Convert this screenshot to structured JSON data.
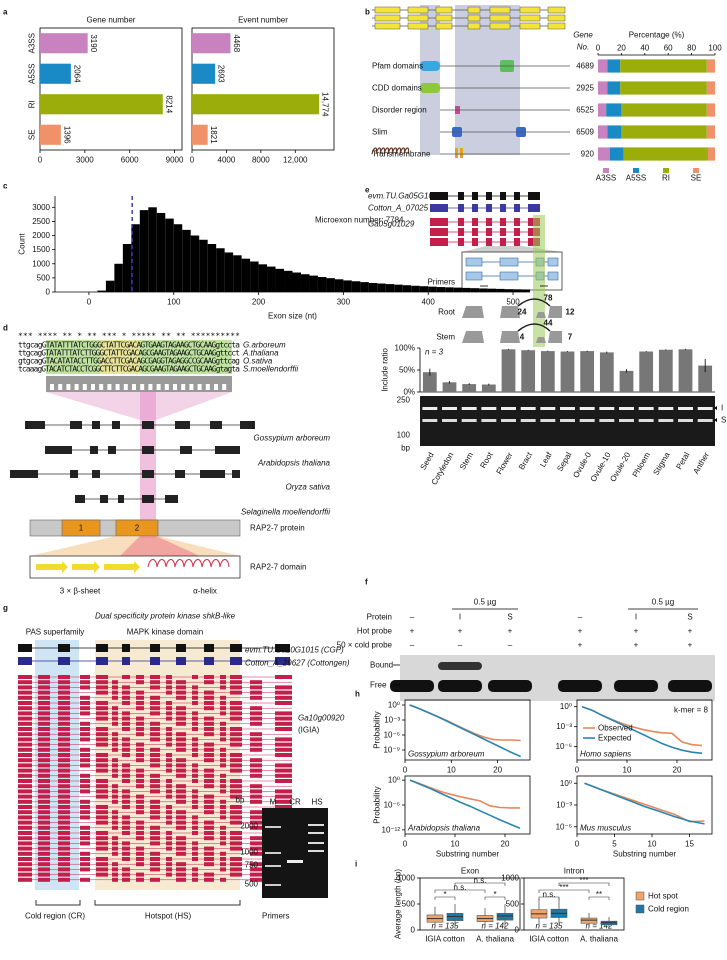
{
  "chart_data": [
    {
      "type": "barh",
      "title": "Gene number",
      "categories": [
        "A3SS",
        "A5SS",
        "RI",
        "SE"
      ],
      "values": [
        3190,
        2064,
        8214,
        1396
      ],
      "colors": [
        "#c882c0",
        "#1a8ac6",
        "#9aad0a",
        "#f0916a"
      ],
      "xlim": [
        0,
        9500
      ],
      "xticks": [
        0,
        3000,
        6000,
        9000
      ]
    },
    {
      "type": "barh",
      "title": "Event number",
      "values": [
        4468,
        2693,
        14774,
        1821
      ],
      "value_labels": [
        "4468",
        "2693",
        "14,774",
        "1821"
      ],
      "colors": [
        "#c882c0",
        "#1a8ac6",
        "#9aad0a",
        "#f0916a"
      ],
      "xlim": [
        0,
        16500
      ],
      "xticks": [
        0,
        4000,
        8000,
        {
          "value": 12000,
          "label": "12,000"
        }
      ]
    },
    {
      "type": "barh_stacked",
      "title": "Percentage (%)",
      "column_header": [
        "Gene",
        "No."
      ],
      "categories": [
        "Pfam domains",
        "CDD domains",
        "Disorder region",
        "Slim",
        "Transmembrane"
      ],
      "gene_numbers": [
        4689,
        2925,
        6525,
        6509,
        920
      ],
      "series": [
        {
          "name": "A3SS",
          "color": "#c882c0",
          "values": [
            8,
            8,
            7,
            8,
            10
          ]
        },
        {
          "name": "A5SS",
          "color": "#1a8ac6",
          "values": [
            11,
            11,
            13,
            12,
            12
          ]
        },
        {
          "name": "RI",
          "color": "#9aad0a",
          "values": [
            74,
            74,
            73,
            73,
            72
          ]
        },
        {
          "name": "SE",
          "color": "#f0916a",
          "values": [
            7,
            7,
            7,
            7,
            6
          ]
        }
      ],
      "xlim": [
        0,
        100
      ],
      "xticks": [
        0,
        20,
        40,
        60,
        80,
        100
      ]
    },
    {
      "type": "histogram",
      "xlabel": "Exon size (nt)",
      "ylabel": "Count",
      "annotation": "Microexon number: 7784",
      "threshold": 51,
      "color": "#000000",
      "bins": [
        0,
        10,
        20,
        30,
        40,
        50,
        60,
        70,
        80,
        90,
        100,
        110,
        120,
        130,
        140,
        150,
        160,
        170,
        180,
        190,
        200,
        210,
        220,
        230,
        240,
        250,
        260,
        270,
        280,
        290,
        300,
        310,
        320,
        330,
        340,
        350,
        360,
        370,
        380,
        390,
        400,
        410,
        420,
        430,
        440,
        450,
        460,
        470,
        480,
        490,
        500,
        510,
        520
      ],
      "values": [
        0,
        50,
        400,
        1000,
        1700,
        2400,
        2900,
        3000,
        2800,
        2600,
        2400,
        2200,
        2000,
        1850,
        1700,
        1550,
        1400,
        1300,
        1180,
        1080,
        980,
        900,
        820,
        750,
        690,
        630,
        580,
        530,
        490,
        450,
        410,
        380,
        350,
        320,
        300,
        280,
        260,
        240,
        220,
        205,
        190,
        175,
        165,
        155,
        145,
        135,
        125,
        118,
        110,
        100,
        95,
        90
      ],
      "xlim": [
        -40,
        520
      ],
      "xticks": [
        0,
        100,
        200,
        300,
        400,
        500
      ],
      "ylim": [
        0,
        3400
      ],
      "yticks": [
        0,
        500,
        1000,
        1500,
        2000,
        2500,
        3000
      ]
    },
    {
      "type": "bar",
      "ylabel": "Include ratio",
      "annotation": "n = 3",
      "color": "#777777",
      "categories": [
        "Seed",
        "Cotyledon",
        "Stem",
        "Root",
        "Flower",
        "Bract",
        "Leaf",
        "Sepal",
        "Ovule-0",
        "Ovule-10",
        "Ovule-20",
        "Phloem",
        "Stigma",
        "Petal",
        "Anther"
      ],
      "values": [
        45,
        22,
        18,
        17,
        97,
        95,
        93,
        92,
        93,
        90,
        48,
        92,
        96,
        97,
        60
      ],
      "errors": [
        8,
        3,
        2,
        2,
        1,
        1,
        1,
        1,
        1,
        2,
        4,
        1,
        1,
        1,
        15
      ],
      "ylim": [
        0,
        100
      ],
      "yticks": [
        {
          "value": 0,
          "label": "0%"
        },
        {
          "value": 50,
          "label": "50%"
        },
        {
          "value": 100,
          "label": "100%"
        }
      ]
    },
    {
      "type": "line",
      "title": "Gossypium arboreum",
      "ylabel": "Probability",
      "log_y": true,
      "x": [
        1,
        3,
        5,
        7,
        9,
        11,
        13,
        15,
        17,
        19,
        21,
        23,
        25
      ],
      "series": [
        {
          "name": "Observed",
          "color": "#e8875a",
          "values": [
            1,
            0.2,
            0.032,
            0.005,
            0.00079,
            0.0001,
            1.3e-05,
            2e-06,
            4e-07,
            1.3e-07,
            1e-07,
            1e-07,
            8e-08
          ]
        },
        {
          "name": "Expected",
          "color": "#2a86b0",
          "values": [
            1,
            0.2,
            0.032,
            0.005,
            0.00063,
            7.9e-05,
            1e-05,
            1.3e-06,
            1.6e-07,
            2e-08,
            2.5e-09,
            3.2e-10,
            5e-11
          ]
        }
      ],
      "xlim": [
        0,
        27
      ],
      "xticks": [
        0,
        10,
        20
      ],
      "ylim": [
        1e-11,
        10
      ],
      "yticks": [
        {
          "value": 1,
          "label": "10⁰"
        },
        {
          "value": 0.001,
          "label": "10⁻³"
        },
        {
          "value": 1e-06,
          "label": "10⁻⁶"
        },
        {
          "value": 1e-09,
          "label": "10⁻⁹"
        }
      ]
    },
    {
      "type": "line",
      "title": "Homo sapiens",
      "annotation": "k-mer = 8",
      "legend": "left",
      "log_y": true,
      "x": [
        1,
        3,
        5,
        7,
        9,
        11,
        13,
        15,
        17,
        19,
        21,
        23,
        25
      ],
      "series": [
        {
          "name": "Observed",
          "color": "#e8875a",
          "values": [
            1,
            0.3,
            0.05,
            0.012,
            0.003,
            0.001,
            0.0004,
            0.0002,
            0.00012,
            0.0001,
            5e-06,
            2e-06,
            1.5e-06
          ]
        },
        {
          "name": "Expected",
          "color": "#2a86b0",
          "values": [
            1,
            0.3,
            0.05,
            0.01,
            0.002,
            0.0004,
            8e-05,
            1.5e-05,
            3e-06,
            8e-07,
            3e-07,
            1.5e-07,
            1e-07
          ]
        }
      ],
      "xlim": [
        0,
        27
      ],
      "xticks": [
        0,
        10,
        20
      ],
      "ylim": [
        1e-08,
        10
      ],
      "yticks": [
        {
          "value": 1,
          "label": "10⁰"
        },
        {
          "value": 0.001,
          "label": "10⁻³"
        },
        {
          "value": 1e-06,
          "label": "10⁻⁶"
        }
      ]
    },
    {
      "type": "line",
      "title": "Arabidopsis thaliana",
      "ylabel": "Probability",
      "xlabel": "Substring number",
      "log_y": true,
      "x": [
        1,
        3,
        5,
        7,
        9,
        11,
        13,
        15,
        17,
        19,
        21,
        23
      ],
      "series": [
        {
          "name": "Observed",
          "color": "#e8875a",
          "values": [
            1,
            0.13,
            0.016,
            0.002,
            0.0004,
            0.0001,
            3.2e-05,
            1e-05,
            6.3e-07,
            2.5e-07,
            2e-07,
            2e-07
          ]
        },
        {
          "name": "Expected",
          "color": "#2a86b0",
          "values": [
            1,
            0.1,
            0.01,
            0.0008,
            6.3e-05,
            5e-06,
            5e-07,
            4e-08,
            3.2e-09,
            2.5e-10,
            2.5e-11,
            2.5e-12
          ]
        }
      ],
      "xlim": [
        0,
        25
      ],
      "xticks": [
        0,
        10,
        20
      ],
      "ylim": [
        1e-13,
        10
      ],
      "yticks": [
        {
          "value": 1,
          "label": "10⁰"
        },
        {
          "value": 1e-06,
          "label": "10⁻⁶"
        },
        {
          "value": 1e-12,
          "label": "10⁻¹²"
        }
      ]
    },
    {
      "type": "line",
      "title": "Mus musculus",
      "xlabel": "Substring number",
      "log_y": true,
      "x": [
        1,
        3,
        5,
        7,
        9,
        11,
        13,
        15,
        17
      ],
      "series": [
        {
          "name": "Observed",
          "color": "#e8875a",
          "values": [
            1,
            0.16,
            0.032,
            0.0063,
            0.0013,
            0.00025,
            5e-05,
            5e-06,
            6.3e-06
          ]
        },
        {
          "name": "Expected",
          "color": "#2a86b0",
          "values": [
            1,
            0.16,
            0.025,
            0.004,
            0.00063,
            0.00013,
            2.5e-05,
            6.3e-06,
            2.5e-06
          ]
        }
      ],
      "xlim": [
        0,
        18
      ],
      "xticks": [
        0,
        5,
        10,
        15
      ],
      "ylim": [
        1e-07,
        10
      ],
      "yticks": [
        {
          "value": 1,
          "label": "10⁰"
        },
        {
          "value": 0.001,
          "label": "10⁻³"
        },
        {
          "value": 1e-06,
          "label": "10⁻⁶"
        }
      ]
    },
    {
      "type": "box",
      "title": "Exon",
      "ylabel": "Average length (bp)",
      "categories": [
        "IGIA cotton",
        "A. thaliana"
      ],
      "n_labels": [
        "n = 135",
        "n = 142"
      ],
      "significance": [
        "*",
        "*",
        "n.s.",
        "n.s."
      ],
      "series": [
        {
          "name": "Hot spot",
          "color": "#f0a36a",
          "values": [
            [
              50,
              150,
              220,
              290,
              450
            ],
            [
              50,
              160,
              220,
              280,
              420
            ]
          ]
        },
        {
          "name": "Cold region",
          "color": "#1f78a8",
          "values": [
            [
              60,
              180,
              260,
              320,
              500
            ],
            [
              60,
              190,
              270,
              320,
              500
            ]
          ]
        }
      ],
      "ylim": [
        0,
        1000
      ],
      "yticks": [
        0,
        500,
        1000
      ]
    },
    {
      "type": "box",
      "title": "Intron",
      "legend": "right",
      "categories": [
        "IGIA cotton",
        "A. thaliana"
      ],
      "n_labels": [
        "n = 135",
        "n = 142"
      ],
      "significance": [
        "n.s.",
        "**",
        "***",
        "***"
      ],
      "series": [
        {
          "name": "Hot spot",
          "color": "#f0a36a",
          "values": [
            [
              100,
              230,
              310,
              390,
              600
            ],
            [
              50,
              130,
              190,
              230,
              330
            ]
          ]
        },
        {
          "name": "Cold region",
          "color": "#1f78a8",
          "values": [
            [
              100,
              240,
              320,
              400,
              620
            ],
            [
              40,
              100,
              140,
              170,
              250
            ]
          ]
        }
      ],
      "ylim": [
        0,
        1000
      ],
      "yticks": [
        0,
        500,
        1000
      ]
    }
  ],
  "panel_labels": [
    "a",
    "b",
    "c",
    "d",
    "e",
    "f",
    "g",
    "h",
    "i"
  ],
  "d": {
    "conservation": "*** ****  **  * **  *** * ***** ** ** **********",
    "sequences": [
      "ttgcagGTATATTTATCTGGGCTATTCGACAGTGAAGTAGAAGCTGCAAGgtccta",
      "ttgcagGTATATTTATCTTGGGCTATTCGACAGCGAAGTAGAAGCTGCAAGgttcct",
      "gtgcagGTACATATACCTTGGACCTTCGACAGCGAGGTAGAGGCCGCAAGgttcag",
      "tcaaagGTACATCTACCTCGGCTTCTTCGACAGCGAAGTAGAAGCTGCAAGgtagta"
    ],
    "species_short": [
      "G.arboreum",
      "A.thaliana",
      "O.sativa",
      "S.moellendorffii"
    ],
    "species": [
      "Gossypium arboreum",
      "Arabidopsis thaliana",
      "Oryza sativa",
      "Selaginella moellendorffii"
    ],
    "protein": "RAP2-7 protein",
    "protein_domains": [
      "1",
      "2"
    ],
    "domain": "RAP2-7 domain",
    "sheet": "3 × β-sheet",
    "helix": "α-helix"
  },
  "e": {
    "genes": [
      "evm.TU.Ga05G1061",
      "Cotton_A_07025",
      "Ga05g01029"
    ],
    "primers": "Primers",
    "tracks": [
      {
        "name": "Root",
        "junctions": [
          "78",
          "24",
          "12"
        ]
      },
      {
        "name": "Stem",
        "junctions": [
          "44",
          "4",
          "7"
        ]
      }
    ],
    "gel_ladder": [
      "250",
      "100"
    ],
    "gel_unit": "bp",
    "bands": [
      "I",
      "S"
    ]
  },
  "f": {
    "row_labels": [
      "Protein",
      "Hot probe",
      "50 × cold probe"
    ],
    "amount": "0.5 µg",
    "protein": [
      "–",
      "I",
      "S",
      "–",
      "I",
      "S"
    ],
    "hot": [
      "+",
      "+",
      "+",
      "+",
      "+",
      "+"
    ],
    "cold": [
      "–",
      "–",
      "–",
      "+",
      "+",
      "+"
    ],
    "bands": [
      "Bound",
      "Free"
    ]
  },
  "g": {
    "title": "Dual specificity protein kinase shkB-like",
    "domains": [
      "PAS superfamily",
      "MAPK kinase domain"
    ],
    "genes": [
      "evm.TU.Ga10G1015 (CGP)",
      "Cotton_A_29627 (Cottongen)",
      "Ga10g00920",
      "(IGIA)"
    ],
    "gel_unit": "bp",
    "gel_lanes": [
      "M",
      "CR",
      "HS"
    ],
    "gel_ladder": [
      "2000",
      "1000",
      "750",
      "500"
    ],
    "regions": [
      "Cold region (CR)",
      "Hotspot (HS)",
      "Primers"
    ]
  }
}
